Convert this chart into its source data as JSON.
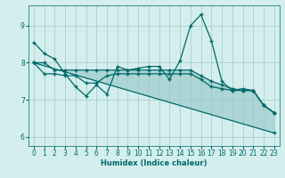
{
  "xlabel": "Humidex (Indice chaleur)",
  "bg_color": "#d4eeee",
  "grid_color": "#a0c8c8",
  "line_color": "#006868",
  "xlim": [
    -0.5,
    23.5
  ],
  "ylim": [
    5.75,
    9.55
  ],
  "yticks": [
    6,
    7,
    8,
    9
  ],
  "xticks": [
    0,
    1,
    2,
    3,
    4,
    5,
    6,
    7,
    8,
    9,
    10,
    11,
    12,
    13,
    14,
    15,
    16,
    17,
    18,
    19,
    20,
    21,
    22,
    23
  ],
  "line_jagged": {
    "x": [
      0,
      1,
      2,
      3,
      4,
      5,
      6,
      7,
      8,
      9,
      10,
      11,
      12,
      13,
      14,
      15,
      16,
      17,
      18,
      19,
      20,
      21,
      22,
      23
    ],
    "y": [
      8.55,
      8.25,
      8.1,
      7.7,
      7.35,
      7.1,
      7.4,
      7.15,
      7.9,
      7.8,
      7.85,
      7.9,
      7.9,
      7.55,
      8.05,
      9.0,
      9.3,
      8.6,
      7.5,
      7.25,
      7.3,
      7.25,
      6.85,
      6.65
    ]
  },
  "line_upper": {
    "x": [
      0,
      1,
      2,
      3,
      4,
      5,
      6,
      7,
      8,
      9,
      10,
      11,
      12,
      13,
      14,
      15,
      16,
      17,
      18,
      19,
      20,
      21,
      22,
      23
    ],
    "y": [
      8.0,
      8.0,
      7.8,
      7.8,
      7.8,
      7.8,
      7.8,
      7.8,
      7.8,
      7.8,
      7.8,
      7.8,
      7.8,
      7.8,
      7.8,
      7.8,
      7.65,
      7.5,
      7.4,
      7.3,
      7.25,
      7.25,
      6.85,
      6.65
    ]
  },
  "line_mid": {
    "x": [
      0,
      1,
      2,
      3,
      4,
      5,
      6,
      7,
      8,
      9,
      10,
      11,
      12,
      13,
      14,
      15,
      16,
      17,
      18,
      19,
      20,
      21,
      22,
      23
    ],
    "y": [
      8.0,
      7.7,
      7.7,
      7.65,
      7.65,
      7.45,
      7.45,
      7.65,
      7.7,
      7.7,
      7.7,
      7.7,
      7.7,
      7.7,
      7.7,
      7.7,
      7.55,
      7.35,
      7.3,
      7.25,
      7.25,
      7.25,
      6.85,
      6.65
    ]
  },
  "line_diag": {
    "x": [
      0,
      23
    ],
    "y": [
      8.0,
      6.1
    ]
  }
}
